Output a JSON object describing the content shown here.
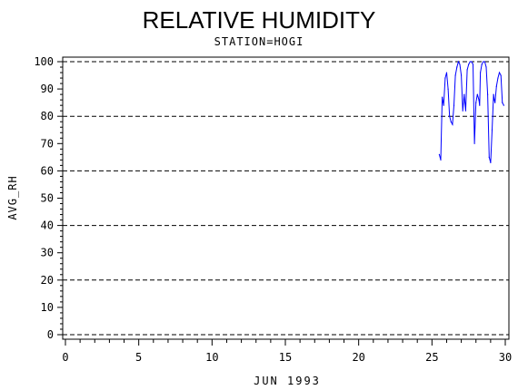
{
  "chart_data": {
    "type": "line",
    "title": "RELATIVE HUMIDITY",
    "subtitle": "STATION=HOGI",
    "xlabel": "JUN 1993",
    "ylabel": "AVG_RH",
    "xlim": [
      0,
      30
    ],
    "ylim": [
      0,
      100
    ],
    "x_ticks": [
      0,
      5,
      10,
      15,
      20,
      25,
      30
    ],
    "y_ticks": [
      0,
      10,
      20,
      30,
      40,
      50,
      60,
      70,
      80,
      90,
      100
    ],
    "grid": "horizontal-dashed",
    "line_color": "#0000ff",
    "series": [
      {
        "x": [
          25.5,
          25.6,
          25.7,
          25.8,
          25.9,
          26.0,
          26.1,
          26.2,
          26.3,
          26.4,
          26.5,
          26.6,
          26.7,
          26.8,
          26.9,
          27.0,
          27.1,
          27.2,
          27.25,
          27.3,
          27.4,
          27.5,
          27.6,
          27.7,
          27.8,
          27.9,
          28.0,
          28.1,
          28.2,
          28.25,
          28.3,
          28.4,
          28.5,
          28.6,
          28.7,
          28.8,
          28.9,
          29.0,
          29.1,
          29.2,
          29.25,
          29.3,
          29.4,
          29.5,
          29.6,
          29.7,
          29.8,
          29.9
        ],
        "y": [
          66,
          64,
          87,
          84,
          94,
          96,
          90,
          80,
          78,
          77,
          84,
          95,
          98,
          100,
          99,
          95,
          82,
          88,
          85,
          82,
          97,
          99,
          100,
          100,
          99,
          70,
          85,
          88,
          86,
          84,
          96,
          99,
          100,
          100,
          98,
          88,
          65,
          63,
          75,
          88,
          86,
          85,
          91,
          94,
          96,
          95,
          85,
          84
        ]
      }
    ]
  }
}
